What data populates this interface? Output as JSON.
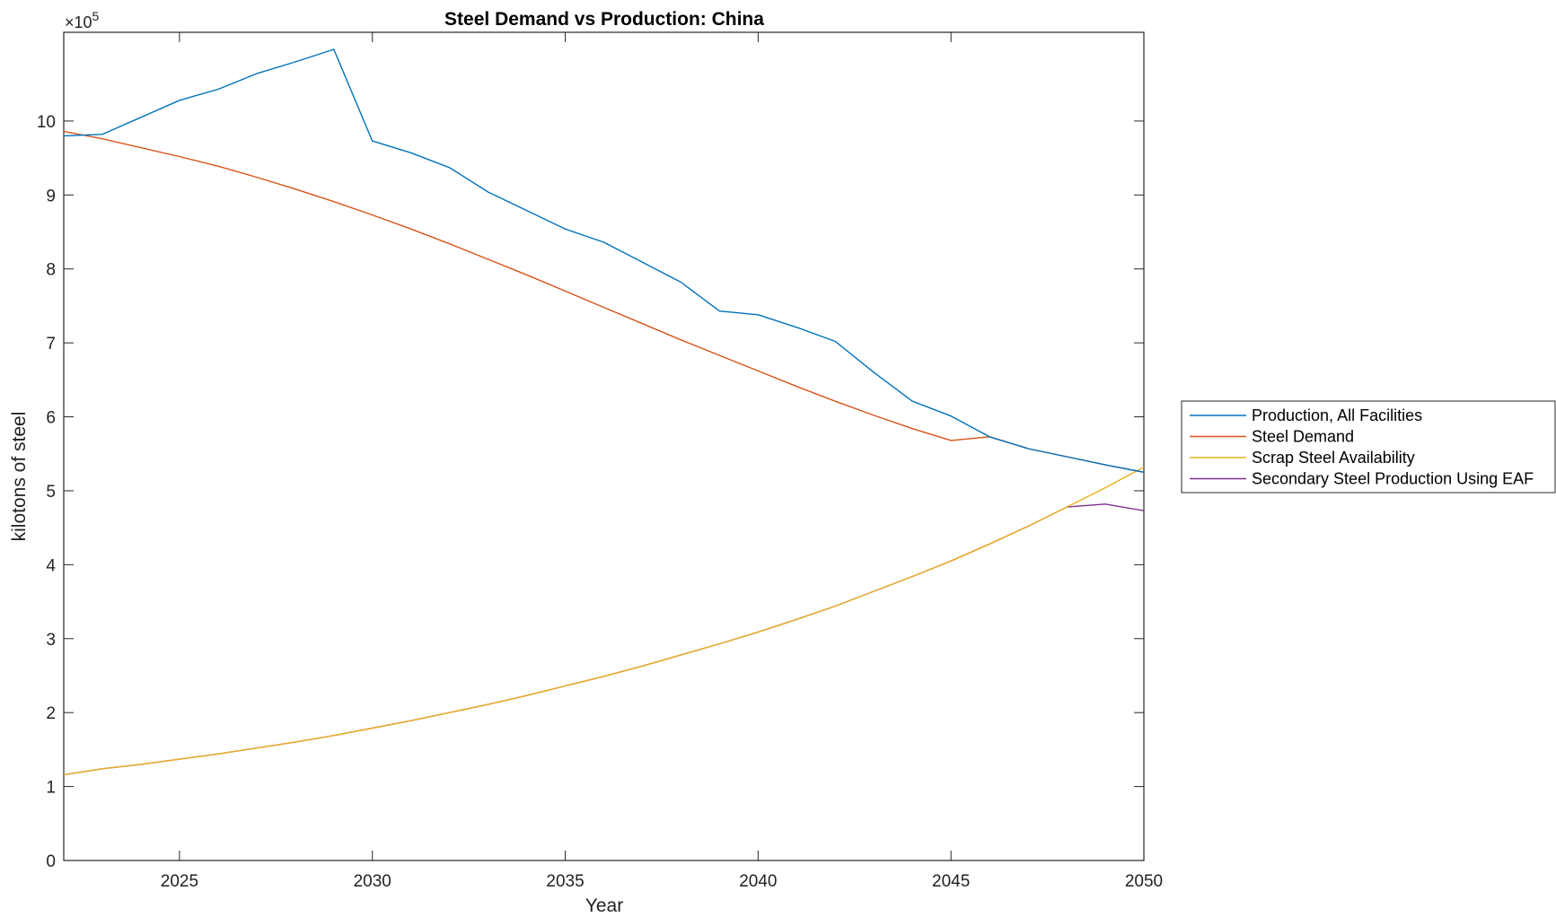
{
  "chart_data": {
    "type": "line",
    "title": "Steel Demand vs Production: China",
    "xlabel": "Year",
    "ylabel": "kilotons of steel",
    "y_exponent_label": "×10",
    "y_exponent": "5",
    "xlim": [
      2022,
      2050
    ],
    "ylim": [
      0,
      11.2
    ],
    "x_ticks": [
      2025,
      2030,
      2035,
      2040,
      2045,
      2050
    ],
    "x_tick_labels": [
      "2025",
      "2030",
      "2035",
      "2040",
      "2045",
      "2050"
    ],
    "y_ticks": [
      0,
      1,
      2,
      3,
      4,
      5,
      6,
      7,
      8,
      9,
      10
    ],
    "y_tick_labels": [
      "0",
      "1",
      "2",
      "3",
      "4",
      "5",
      "6",
      "7",
      "8",
      "9",
      "10"
    ],
    "grid": false,
    "legend_position": "outside-right",
    "x": [
      2022,
      2023,
      2024,
      2025,
      2026,
      2027,
      2028,
      2029,
      2030,
      2031,
      2032,
      2033,
      2034,
      2035,
      2036,
      2037,
      2038,
      2039,
      2040,
      2041,
      2042,
      2043,
      2044,
      2045,
      2046,
      2047,
      2048,
      2049,
      2050
    ],
    "series": [
      {
        "name": "Production, All Facilities",
        "color": "#0072BD",
        "values": [
          9.8,
          9.82,
          10.05,
          10.28,
          10.43,
          10.64,
          10.8,
          10.97,
          9.73,
          9.57,
          9.37,
          9.04,
          8.79,
          8.54,
          8.36,
          8.09,
          7.82,
          7.43,
          7.38,
          7.21,
          7.02,
          6.6,
          6.21,
          6.01,
          5.73,
          5.57,
          5.46,
          5.35,
          5.25
        ]
      },
      {
        "name": "Steel Demand",
        "color": "#D95319",
        "values": [
          9.86,
          9.76,
          9.64,
          9.52,
          9.39,
          9.24,
          9.08,
          8.91,
          8.73,
          8.54,
          8.34,
          8.13,
          7.92,
          7.7,
          7.48,
          7.26,
          7.04,
          6.83,
          6.62,
          6.41,
          6.21,
          6.02,
          5.84,
          5.68,
          5.73,
          5.57,
          5.46,
          5.35,
          5.25
        ]
      },
      {
        "name": "Scrap Steel Availability",
        "color": "#EDB120",
        "values": [
          1.16,
          1.24,
          1.3,
          1.37,
          1.44,
          1.52,
          1.6,
          1.69,
          1.79,
          1.89,
          2.0,
          2.11,
          2.23,
          2.36,
          2.49,
          2.63,
          2.78,
          2.93,
          3.09,
          3.26,
          3.44,
          3.64,
          3.84,
          4.05,
          4.28,
          4.52,
          4.78,
          5.04,
          5.32
        ]
      },
      {
        "name": "Secondary Steel Production Using EAF",
        "color": "#7E2F8E",
        "values": [
          1.16,
          1.24,
          1.3,
          1.37,
          1.44,
          1.52,
          1.6,
          1.69,
          1.79,
          1.89,
          2.0,
          2.11,
          2.23,
          2.36,
          2.49,
          2.63,
          2.78,
          2.93,
          3.09,
          3.26,
          3.44,
          3.64,
          3.84,
          4.05,
          4.28,
          4.52,
          4.78,
          4.82,
          4.73
        ]
      }
    ]
  }
}
